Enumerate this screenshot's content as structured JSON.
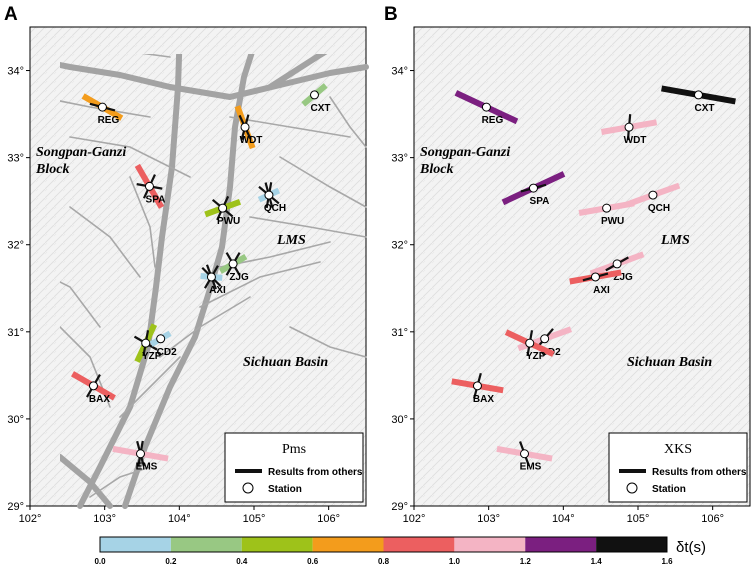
{
  "panels": [
    {
      "id": "A",
      "letter": "A",
      "legend_title": "Pms",
      "others_label": "Results from others",
      "station_label": "Station",
      "region_labels": {
        "block_line1": "Songpan-Ganzi",
        "block_line2": "Block",
        "basin": "Sichuan Basin",
        "lms": "LMS"
      },
      "stations": [
        {
          "name": "REG",
          "lon": 102.97,
          "lat": 33.58,
          "phi": 120,
          "dt": 0.7,
          "others": [
            105
          ]
        },
        {
          "name": "WDT",
          "lon": 104.88,
          "lat": 33.35,
          "phi": 160,
          "dt": 0.7,
          "others": [
            15,
            155
          ]
        },
        {
          "name": "CXT",
          "lon": 105.81,
          "lat": 33.72,
          "phi": 50,
          "dt": 0.3,
          "others": []
        },
        {
          "name": "SPA",
          "lon": 103.6,
          "lat": 32.67,
          "phi": 150,
          "dt": 0.8,
          "others": [
            25,
            100
          ]
        },
        {
          "name": "QCH",
          "lon": 105.2,
          "lat": 32.57,
          "phi": 65,
          "dt": 0.1,
          "others": [
            10,
            130,
            165
          ]
        },
        {
          "name": "PWU",
          "lon": 104.58,
          "lat": 32.42,
          "phi": 70,
          "dt": 0.5,
          "others": [
            25,
            130
          ]
        },
        {
          "name": "ZJG",
          "lon": 104.72,
          "lat": 31.78,
          "phi": 60,
          "dt": 0.3,
          "others": [
            30,
            150
          ]
        },
        {
          "name": "AXI",
          "lon": 104.43,
          "lat": 31.63,
          "phi": 95,
          "dt": 0.1,
          "others": [
            30,
            160,
            135
          ]
        },
        {
          "name": "YZP",
          "lon": 103.55,
          "lat": 30.87,
          "phi": 25,
          "dt": 0.6,
          "others": [
            10,
            120
          ]
        },
        {
          "name": "CD2",
          "lon": 103.75,
          "lat": 30.92,
          "phi": 60,
          "dt": 0.1,
          "others": []
        },
        {
          "name": "BAX",
          "lon": 102.85,
          "lat": 30.38,
          "phi": 120,
          "dt": 0.8,
          "others": [
            30
          ]
        },
        {
          "name": "EMS",
          "lon": 103.48,
          "lat": 29.6,
          "phi": 100,
          "dt": 1.0,
          "others": [
            10,
            165
          ]
        }
      ]
    },
    {
      "id": "B",
      "letter": "B",
      "legend_title": "XKS",
      "others_label": "Results from others",
      "station_label": "Station",
      "region_labels": {
        "block_line1": "Songpan-Ganzi",
        "block_line2": "Block",
        "basin": "Sichuan Basin",
        "lms": "LMS"
      },
      "stations": [
        {
          "name": "REG",
          "lon": 102.97,
          "lat": 33.58,
          "phi": 115,
          "dt": 1.3,
          "others": []
        },
        {
          "name": "WDT",
          "lon": 104.88,
          "lat": 33.35,
          "phi": 80,
          "dt": 1.0,
          "others": [
            5
          ]
        },
        {
          "name": "CXT",
          "lon": 105.81,
          "lat": 33.72,
          "phi": 100,
          "dt": 1.5,
          "others": [
            105
          ]
        },
        {
          "name": "SPA",
          "lon": 103.6,
          "lat": 32.65,
          "phi": 65,
          "dt": 1.3,
          "others": [
            75
          ]
        },
        {
          "name": "QCH",
          "lon": 105.2,
          "lat": 32.57,
          "phi": 70,
          "dt": 1.0,
          "others": []
        },
        {
          "name": "PWU",
          "lon": 104.58,
          "lat": 32.42,
          "phi": 80,
          "dt": 1.0,
          "others": []
        },
        {
          "name": "ZJG",
          "lon": 104.72,
          "lat": 31.78,
          "phi": 70,
          "dt": 1.0,
          "others": [
            60
          ]
        },
        {
          "name": "AXI",
          "lon": 104.43,
          "lat": 31.63,
          "phi": 80,
          "dt": 0.9,
          "others": [
            75
          ]
        },
        {
          "name": "CD2",
          "lon": 103.75,
          "lat": 30.92,
          "phi": 70,
          "dt": 1.0,
          "others": [
            40
          ]
        },
        {
          "name": "YZP",
          "lon": 103.55,
          "lat": 30.87,
          "phi": 115,
          "dt": 0.9,
          "others": [
            10
          ]
        },
        {
          "name": "BAX",
          "lon": 102.85,
          "lat": 30.38,
          "phi": 100,
          "dt": 0.9,
          "others": [
            15
          ]
        },
        {
          "name": "EMS",
          "lon": 103.48,
          "lat": 29.6,
          "phi": 100,
          "dt": 1.0,
          "others": [
            160
          ]
        }
      ]
    }
  ],
  "axes": {
    "lon_ticks": [
      102,
      103,
      104,
      105,
      106
    ],
    "lat_ticks": [
      29,
      30,
      31,
      32,
      33,
      34
    ],
    "lon_range": [
      102,
      106.5
    ],
    "lat_range": [
      29,
      34.5
    ]
  },
  "colorbar": {
    "ticks": [
      "0.0",
      "0.2",
      "0.4",
      "0.6",
      "0.8",
      "1.0",
      "1.2",
      "1.4",
      "1.6"
    ],
    "colors": [
      "#a6d3e6",
      "#98c883",
      "#9ec21a",
      "#f39c1c",
      "#ec5f60",
      "#f4b4c4",
      "#7b1f80",
      "#111111"
    ],
    "label": "δt(s)"
  }
}
